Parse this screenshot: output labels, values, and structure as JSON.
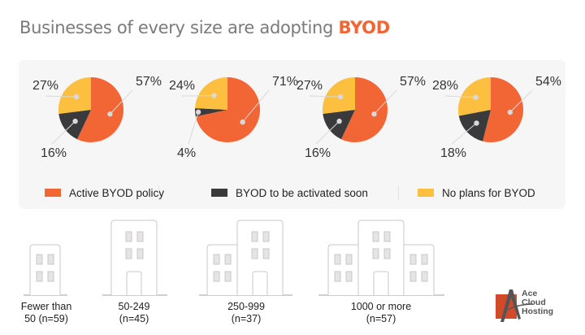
{
  "title": {
    "prefix": "Businesses of every size are adopting ",
    "highlight": "BYOD"
  },
  "colors": {
    "active": "#f26535",
    "soon": "#3a3a3c",
    "none": "#fcbf3f",
    "panel": "#f6f6f6",
    "leader": "#d9d9d9"
  },
  "chart_data": {
    "type": "pie",
    "title": "Businesses of every size are adopting BYOD",
    "legend": [
      "Active BYOD policy",
      "BYOD to be activated soon",
      "No plans for BYOD"
    ],
    "legend_position": "bottom",
    "charts": [
      {
        "category": "Fewer than 50 (n=59)",
        "values": [
          57,
          16,
          27
        ],
        "labels": [
          "57%",
          "16%",
          "27%"
        ]
      },
      {
        "category": "50-249 (n=45)",
        "values": [
          71,
          4,
          24
        ],
        "labels": [
          "71%",
          "4%",
          "24%"
        ]
      },
      {
        "category": "250-999 (n=37)",
        "values": [
          57,
          16,
          27
        ],
        "labels": [
          "57%",
          "16%",
          "27%"
        ]
      },
      {
        "category": "1000 or more (n=57)",
        "values": [
          54,
          18,
          28
        ],
        "labels": [
          "54%",
          "18%",
          "28%"
        ]
      }
    ]
  },
  "legend": [
    {
      "label": "Active BYOD policy",
      "color_key": "active"
    },
    {
      "label": "BYOD to be activated soon",
      "color_key": "soon"
    },
    {
      "label": "No plans for BYOD",
      "color_key": "none"
    }
  ],
  "categories": [
    {
      "line1": "Fewer than",
      "line2": "50 (n=59)",
      "icon": "small-building-icon"
    },
    {
      "line1": "50-249",
      "line2": "(n=45)",
      "icon": "tall-building-icon"
    },
    {
      "line1": "250-999",
      "line2": "(n=37)",
      "icon": "two-buildings-icon"
    },
    {
      "line1": "1000 or more",
      "line2": "(n=57)",
      "icon": "three-buildings-icon"
    }
  ],
  "logo": {
    "line1": "Ace",
    "line2": "Cloud",
    "line3": "Hosting"
  }
}
